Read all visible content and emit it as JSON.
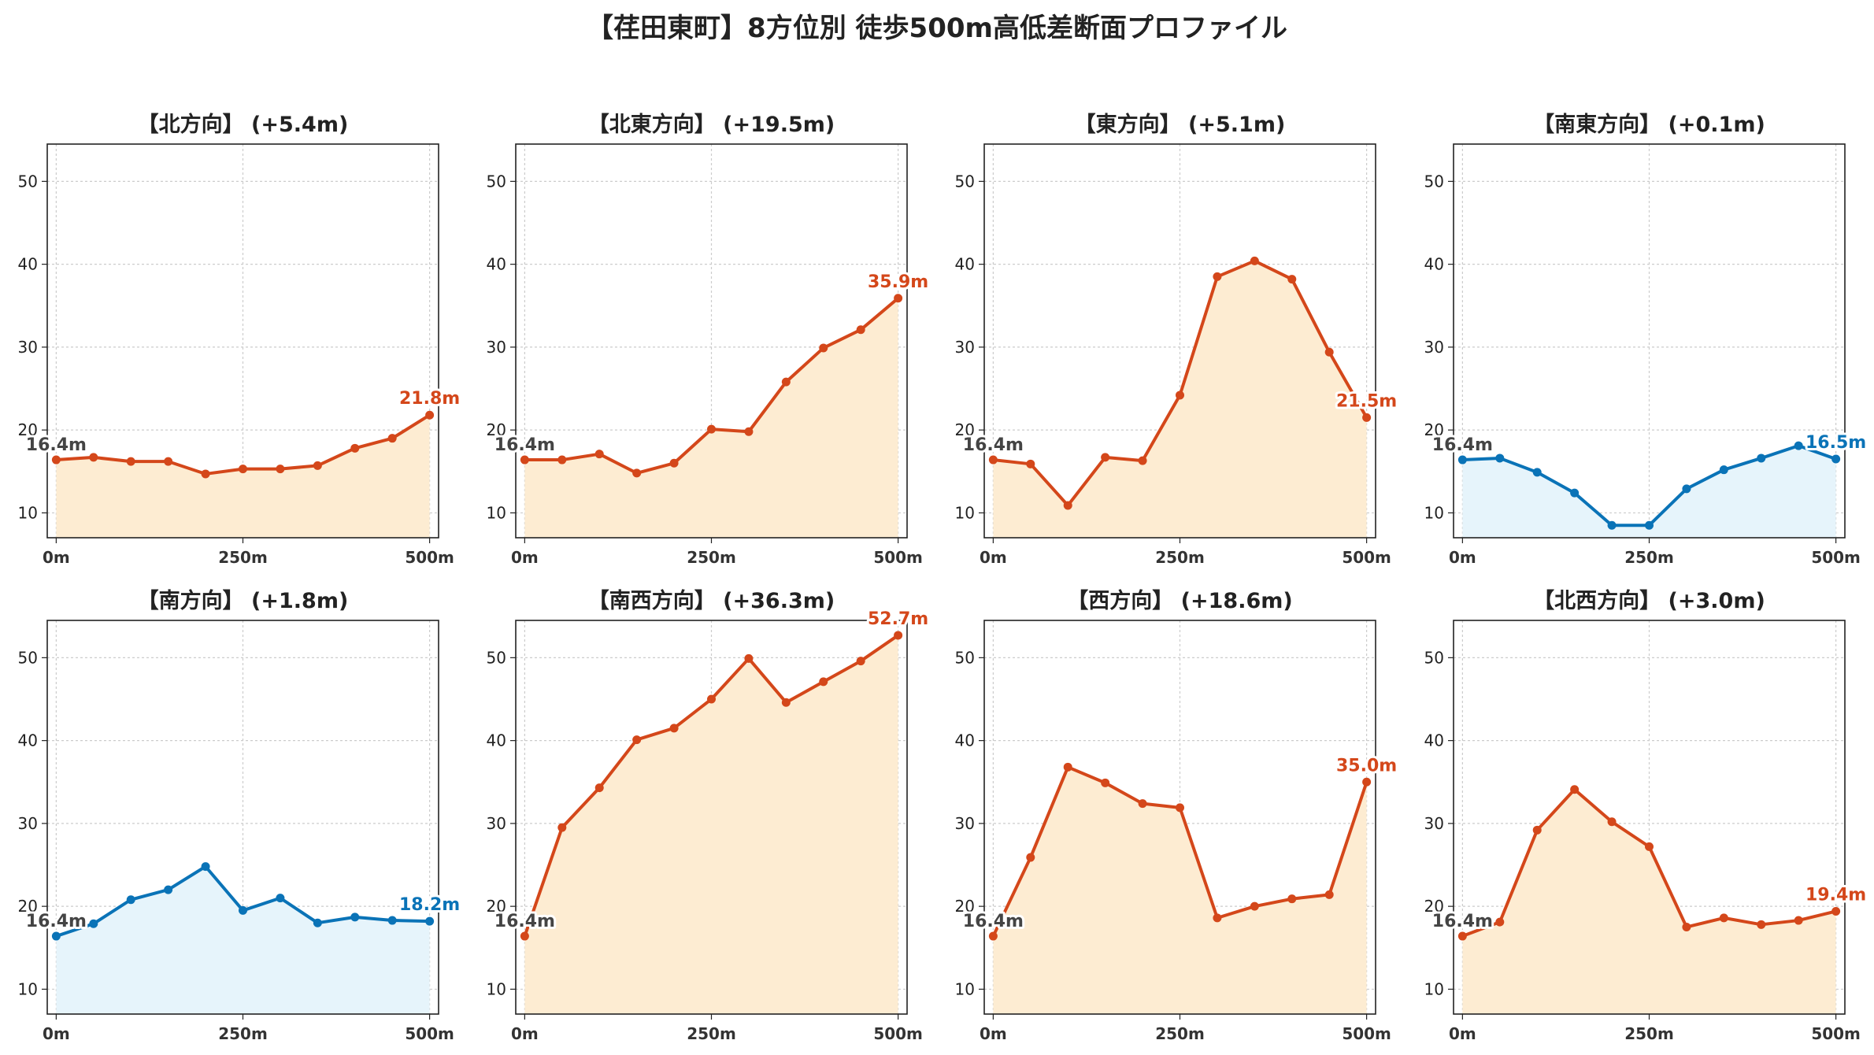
{
  "title": "【荏田東町】8方位別 徒歩500m高低差断面プロファイル",
  "colors": {
    "up_line": "#d4471a",
    "up_fill": "#fdecd2",
    "down_line": "#0a73b7",
    "down_fill": "#e6f4fb",
    "start_label": "#444444"
  },
  "chart_data": [
    {
      "type": "area",
      "title": "【北方向】 (+5.4m)",
      "trend": "up",
      "x": [
        0,
        50,
        100,
        150,
        200,
        250,
        300,
        350,
        400,
        450,
        500
      ],
      "values": [
        16.4,
        16.7,
        16.2,
        16.2,
        14.7,
        15.3,
        15.3,
        15.7,
        17.8,
        19.0,
        21.8
      ],
      "xticks": [
        "0m",
        "250m",
        "500m"
      ],
      "yticks": [
        "10",
        "20",
        "30",
        "40",
        "50"
      ],
      "ylim": [
        7,
        54.5
      ],
      "xlim": [
        -12,
        512
      ],
      "grid": true,
      "start_label": "16.4m",
      "end_label": "21.8m"
    },
    {
      "type": "area",
      "title": "【北東方向】 (+19.5m)",
      "trend": "up",
      "x": [
        0,
        50,
        100,
        150,
        200,
        250,
        300,
        350,
        400,
        450,
        500
      ],
      "values": [
        16.4,
        16.4,
        17.1,
        14.8,
        16.0,
        20.1,
        19.8,
        25.8,
        29.9,
        32.1,
        35.9
      ],
      "xticks": [
        "0m",
        "250m",
        "500m"
      ],
      "yticks": [
        "10",
        "20",
        "30",
        "40",
        "50"
      ],
      "ylim": [
        7,
        54.5
      ],
      "xlim": [
        -12,
        512
      ],
      "grid": true,
      "start_label": "16.4m",
      "end_label": "35.9m"
    },
    {
      "type": "area",
      "title": "【東方向】 (+5.1m)",
      "trend": "up",
      "x": [
        0,
        50,
        100,
        150,
        200,
        250,
        300,
        350,
        400,
        450,
        500
      ],
      "values": [
        16.4,
        15.9,
        10.9,
        16.7,
        16.3,
        24.2,
        38.5,
        40.4,
        38.2,
        29.4,
        21.5
      ],
      "xticks": [
        "0m",
        "250m",
        "500m"
      ],
      "yticks": [
        "10",
        "20",
        "30",
        "40",
        "50"
      ],
      "ylim": [
        7,
        54.5
      ],
      "xlim": [
        -12,
        512
      ],
      "grid": true,
      "start_label": "16.4m",
      "end_label": "21.5m"
    },
    {
      "type": "area",
      "title": "【南東方向】 (+0.1m)",
      "trend": "down",
      "x": [
        0,
        50,
        100,
        150,
        200,
        250,
        300,
        350,
        400,
        450,
        500
      ],
      "values": [
        16.4,
        16.6,
        14.9,
        12.4,
        8.5,
        8.5,
        12.9,
        15.2,
        16.6,
        18.1,
        16.5
      ],
      "xticks": [
        "0m",
        "250m",
        "500m"
      ],
      "yticks": [
        "10",
        "20",
        "30",
        "40",
        "50"
      ],
      "ylim": [
        7,
        54.5
      ],
      "xlim": [
        -12,
        512
      ],
      "grid": true,
      "start_label": "16.4m",
      "end_label": "16.5m"
    },
    {
      "type": "area",
      "title": "【南方向】 (+1.8m)",
      "trend": "down",
      "x": [
        0,
        50,
        100,
        150,
        200,
        250,
        300,
        350,
        400,
        450,
        500
      ],
      "values": [
        16.4,
        17.9,
        20.8,
        22.0,
        24.8,
        19.5,
        21.0,
        18.0,
        18.7,
        18.3,
        18.2
      ],
      "xticks": [
        "0m",
        "250m",
        "500m"
      ],
      "yticks": [
        "10",
        "20",
        "30",
        "40",
        "50"
      ],
      "ylim": [
        7,
        54.5
      ],
      "xlim": [
        -12,
        512
      ],
      "grid": true,
      "start_label": "16.4m",
      "end_label": "18.2m"
    },
    {
      "type": "area",
      "title": "【南西方向】 (+36.3m)",
      "trend": "up",
      "x": [
        0,
        50,
        100,
        150,
        200,
        250,
        300,
        350,
        400,
        450,
        500
      ],
      "values": [
        16.4,
        29.5,
        34.3,
        40.1,
        41.5,
        45.0,
        49.9,
        44.6,
        47.1,
        49.6,
        52.7
      ],
      "xticks": [
        "0m",
        "250m",
        "500m"
      ],
      "yticks": [
        "10",
        "20",
        "30",
        "40",
        "50"
      ],
      "ylim": [
        7,
        54.5
      ],
      "xlim": [
        -12,
        512
      ],
      "grid": true,
      "start_label": "16.4m",
      "end_label": "52.7m"
    },
    {
      "type": "area",
      "title": "【西方向】 (+18.6m)",
      "trend": "up",
      "x": [
        0,
        50,
        100,
        150,
        200,
        250,
        300,
        350,
        400,
        450,
        500
      ],
      "values": [
        16.4,
        25.9,
        36.8,
        34.9,
        32.4,
        31.9,
        18.6,
        20.0,
        20.9,
        21.4,
        35.0
      ],
      "xticks": [
        "0m",
        "250m",
        "500m"
      ],
      "yticks": [
        "10",
        "20",
        "30",
        "40",
        "50"
      ],
      "ylim": [
        7,
        54.5
      ],
      "xlim": [
        -12,
        512
      ],
      "grid": true,
      "start_label": "16.4m",
      "end_label": "35.0m"
    },
    {
      "type": "area",
      "title": "【北西方向】 (+3.0m)",
      "trend": "up",
      "x": [
        0,
        50,
        100,
        150,
        200,
        250,
        300,
        350,
        400,
        450,
        500
      ],
      "values": [
        16.4,
        18.1,
        29.2,
        34.1,
        30.2,
        27.2,
        17.5,
        18.6,
        17.8,
        18.3,
        19.4
      ],
      "xticks": [
        "0m",
        "250m",
        "500m"
      ],
      "yticks": [
        "10",
        "20",
        "30",
        "40",
        "50"
      ],
      "ylim": [
        7,
        54.5
      ],
      "xlim": [
        -12,
        512
      ],
      "grid": true,
      "start_label": "16.4m",
      "end_label": "19.4m"
    }
  ]
}
